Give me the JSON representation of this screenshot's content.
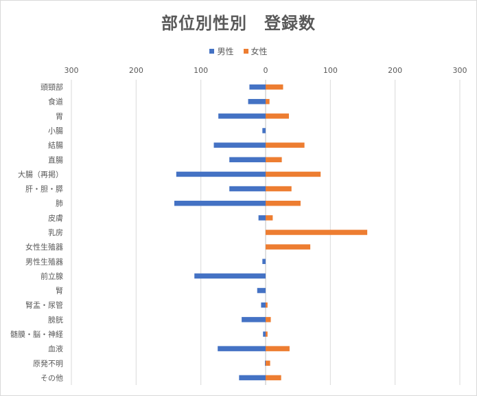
{
  "chart_data": {
    "type": "bar",
    "orientation": "horizontal-butterfly",
    "title": "部位別性別　登録数",
    "legend_position": "top",
    "x_tick_labels": [
      "300",
      "200",
      "100",
      "0",
      "100",
      "200",
      "300"
    ],
    "xlim": [
      -300,
      300
    ],
    "grid": true,
    "categories": [
      "頭頸部",
      "食道",
      "胃",
      "小腸",
      "結腸",
      "直腸",
      "大腸（再掲）",
      "肝・胆・膵",
      "肺",
      "皮膚",
      "乳房",
      "女性生殖器",
      "男性生殖器",
      "前立腺",
      "腎",
      "腎盂・尿管",
      "膀胱",
      "髄膜・脳・神経",
      "血液",
      "原発不明",
      "その他"
    ],
    "series": [
      {
        "name": "男性",
        "color": "#4472c4",
        "values": [
          25,
          27,
          73,
          5,
          80,
          56,
          138,
          56,
          141,
          11,
          0,
          0,
          5,
          110,
          13,
          7,
          37,
          4,
          74,
          1,
          41
        ]
      },
      {
        "name": "女性",
        "color": "#ed7d31",
        "values": [
          27,
          6,
          36,
          0,
          60,
          25,
          85,
          40,
          54,
          11,
          157,
          69,
          0,
          0,
          0,
          3,
          8,
          3,
          37,
          7,
          24
        ]
      }
    ]
  }
}
